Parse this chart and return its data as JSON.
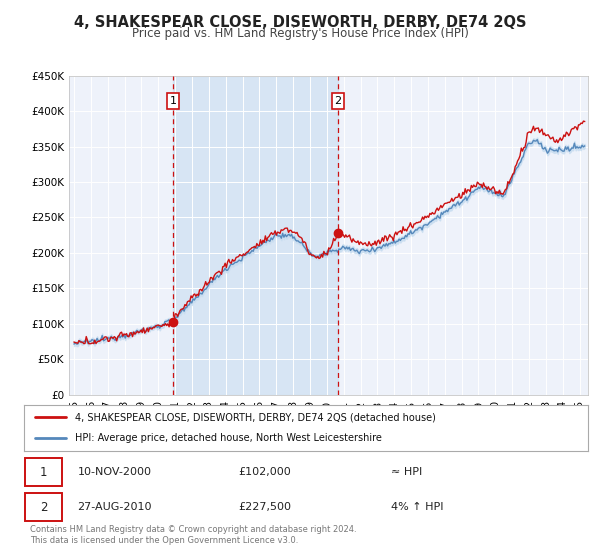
{
  "title": "4, SHAKESPEAR CLOSE, DISEWORTH, DERBY, DE74 2QS",
  "subtitle": "Price paid vs. HM Land Registry's House Price Index (HPI)",
  "background_color": "#ffffff",
  "plot_bg_color": "#eef2fa",
  "grid_color": "#ffffff",
  "shade_color": "#dce8f8",
  "ylim": [
    0,
    450000
  ],
  "xlim_start": 1994.7,
  "xlim_end": 2025.5,
  "yticks": [
    0,
    50000,
    100000,
    150000,
    200000,
    250000,
    300000,
    350000,
    400000,
    450000
  ],
  "ytick_labels": [
    "£0",
    "£50K",
    "£100K",
    "£150K",
    "£200K",
    "£250K",
    "£300K",
    "£350K",
    "£400K",
    "£450K"
  ],
  "xtick_years": [
    1995,
    1996,
    1997,
    1998,
    1999,
    2000,
    2001,
    2002,
    2003,
    2004,
    2005,
    2006,
    2007,
    2008,
    2009,
    2010,
    2011,
    2012,
    2013,
    2014,
    2015,
    2016,
    2017,
    2018,
    2019,
    2020,
    2021,
    2022,
    2023,
    2024,
    2025
  ],
  "sale1_x": 2000.87,
  "sale1_y": 102000,
  "sale2_x": 2010.66,
  "sale2_y": 227500,
  "sale1_date": "10-NOV-2000",
  "sale1_price": "£102,000",
  "sale1_hpi": "≈ HPI",
  "sale2_date": "27-AUG-2010",
  "sale2_price": "£227,500",
  "sale2_hpi": "4% ↑ HPI",
  "red_line_color": "#cc1111",
  "blue_line_color": "#5588bb",
  "blue_fill_color": "#c8ddf0",
  "marker_color": "#cc1111",
  "vline_color": "#cc1111",
  "legend_label_red": "4, SHAKESPEAR CLOSE, DISEWORTH, DERBY, DE74 2QS (detached house)",
  "legend_label_blue": "HPI: Average price, detached house, North West Leicestershire",
  "footer_text": "Contains HM Land Registry data © Crown copyright and database right 2024.\nThis data is licensed under the Open Government Licence v3.0."
}
